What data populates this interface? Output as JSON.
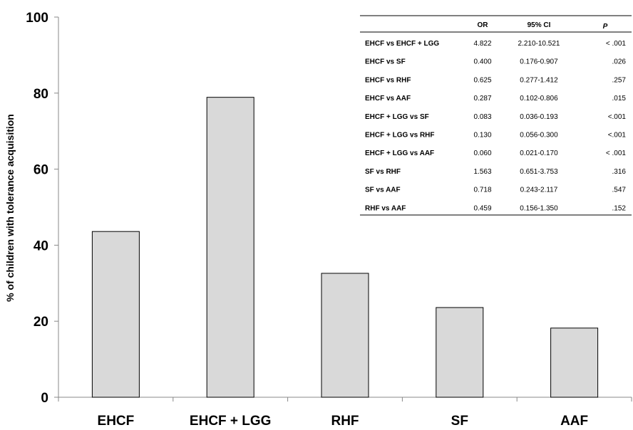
{
  "chart_data": {
    "type": "bar",
    "categories": [
      "EHCF",
      "EHCF + LGG",
      "RHF",
      "SF",
      "AAF"
    ],
    "values": [
      43.6,
      78.9,
      32.6,
      23.6,
      18.2
    ],
    "title": "",
    "xlabel": "",
    "ylabel": "% of children with tolerance acquisition",
    "ylim": [
      0,
      100
    ],
    "yticks": [
      0,
      20,
      40,
      60,
      80,
      100
    ],
    "grid": false,
    "bar_color": "#d9d9d9",
    "bar_edge_color": "#000000",
    "inset_table": {
      "columns": [
        "",
        "OR",
        "95% CI",
        "P"
      ],
      "rows": [
        [
          "EHCF vs EHCF + LGG",
          "4.822",
          "2.210-10.521",
          "< .001"
        ],
        [
          "EHCF vs SF",
          "0.400",
          "0.176-0.907",
          ".026"
        ],
        [
          "EHCF vs RHF",
          "0.625",
          "0.277-1.412",
          ".257"
        ],
        [
          "EHCF vs AAF",
          "0.287",
          "0.102-0.806",
          ".015"
        ],
        [
          "EHCF + LGG vs SF",
          "0.083",
          "0.036-0.193",
          "<.001"
        ],
        [
          "EHCF + LGG vs RHF",
          "0.130",
          "0.056-0.300",
          "<.001"
        ],
        [
          "EHCF + LGG vs AAF",
          "0.060",
          "0.021-0.170",
          "< .001"
        ],
        [
          "SF vs RHF",
          "1.563",
          "0.651-3.753",
          ".316"
        ],
        [
          "SF  vs AAF",
          "0.718",
          "0.243-2.117",
          ".547"
        ],
        [
          "RHF vs AAF",
          "0.459",
          "0.156-1.350",
          ".152"
        ]
      ]
    }
  }
}
